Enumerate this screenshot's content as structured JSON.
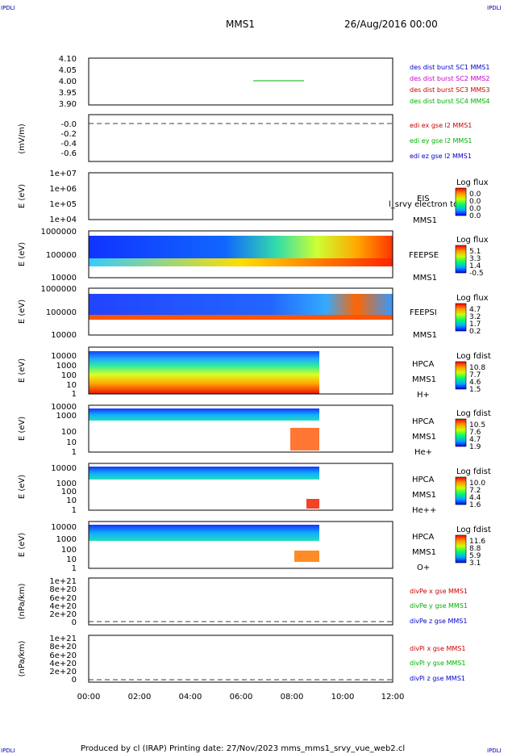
{
  "corner_marks": {
    "top_left": "IPDLI",
    "top_right": "IPDLI",
    "bottom_left": "IPDLI",
    "bottom_right": "IPDLI"
  },
  "header": {
    "mission": "MMS1",
    "date": "26/Aug/2016 00:00"
  },
  "footer": {
    "text": "Produced by cl (IRAP)   Printing date: 27/Nov/2023   mms_mms1_srvy_vue_web2.cl"
  },
  "x_axis": {
    "ticks": [
      "00:00",
      "02:00",
      "04:00",
      "06:00",
      "08:00",
      "10:00",
      "12:00"
    ]
  },
  "chart_data": [
    {
      "type": "line",
      "panel": "des dist burst",
      "ylabel": "",
      "yticks": [
        "4.10",
        "4.05",
        "4.00",
        "3.95",
        "3.90"
      ],
      "ylim": [
        3.9,
        4.1
      ],
      "xlim": [
        "00:00",
        "12:00"
      ],
      "series": [
        {
          "name": "des dist burst SC1 MMS1",
          "color": "#0000cc",
          "points": []
        },
        {
          "name": "des dist burst SC2 MMS2",
          "color": "#cc00cc",
          "points": []
        },
        {
          "name": "des dist burst SC3 MMS3",
          "color": "#cc0000",
          "points": []
        },
        {
          "name": "des dist burst SC4 MMS4",
          "color": "#00b000",
          "points": [
            [
              "06:35",
              4.0
            ],
            [
              "08:35",
              4.0
            ]
          ]
        }
      ]
    },
    {
      "type": "line",
      "panel": "edi efield",
      "ylabel": "(mV/m)",
      "yticks": [
        "-0.0",
        "-0.2",
        "-0.4",
        "-0.6"
      ],
      "ylim": [
        -0.7,
        0.05
      ],
      "series": [
        {
          "name": "edi ex gse l2 MMS1",
          "color": "#cc0000"
        },
        {
          "name": "edi ey gse l2 MMS1",
          "color": "#00b000"
        },
        {
          "name": "edi ez gse l2 MMS1",
          "color": "#0000cc"
        }
      ]
    },
    {
      "type": "heatmap",
      "panel": "EIS",
      "ylabel": "E (eV)",
      "yticks": [
        "1e+07",
        "1e+06",
        "1e+05",
        "1e+04"
      ],
      "scale": "log",
      "labels": [
        "EIS",
        "MMS1"
      ],
      "overlay_text": "l_srvy electron to",
      "colorbar": {
        "title": "Log flux",
        "ticks": [
          "0.0",
          "0.0",
          "0.0",
          "0.0"
        ]
      }
    },
    {
      "type": "heatmap",
      "panel": "FEEPSE",
      "ylabel": "E (eV)",
      "yticks": [
        "1000000",
        "100000",
        "10000"
      ],
      "scale": "log",
      "labels": [
        "FEEPSE",
        "MMS1"
      ],
      "colorbar": {
        "title": "Log flux",
        "ticks": [
          "5.1",
          "3.3",
          "1.4",
          "-0.5"
        ]
      },
      "extent_x": [
        "00:00",
        "12:00"
      ],
      "trend": "blue (low) flux from 00:00 to ~06:00, rising to green/yellow/red toward 12:00"
    },
    {
      "type": "heatmap",
      "panel": "FEEPSI",
      "ylabel": "E (eV)",
      "yticks": [
        "1000000",
        "100000",
        "10000"
      ],
      "scale": "log",
      "labels": [
        "FEEPSI",
        "MMS1"
      ],
      "colorbar": {
        "title": "Log flux",
        "ticks": [
          "4.7",
          "3.2",
          "1.7",
          "0.2"
        ]
      },
      "extent_x": [
        "00:00",
        "12:00"
      ]
    },
    {
      "type": "heatmap",
      "panel": "HPCA H+",
      "ylabel": "E (eV)",
      "yticks": [
        "10000",
        "1000",
        "100",
        "10",
        "1"
      ],
      "scale": "log",
      "labels": [
        "HPCA",
        "MMS1",
        "H+"
      ],
      "colorbar": {
        "title": "Log fdist",
        "ticks": [
          "10.8",
          "7.7",
          "4.6",
          "1.5"
        ]
      },
      "extent_x": [
        "00:00",
        "09:05"
      ]
    },
    {
      "type": "heatmap",
      "panel": "HPCA He+",
      "ylabel": "E (eV)",
      "yticks": [
        "10000",
        "1000",
        "100",
        "10",
        "1"
      ],
      "scale": "log",
      "labels": [
        "HPCA",
        "MMS1",
        "He+"
      ],
      "colorbar": {
        "title": "Log fdist",
        "ticks": [
          "10.5",
          "7.6",
          "4.7",
          "1.9"
        ]
      },
      "extent_x": [
        "00:00",
        "09:05"
      ]
    },
    {
      "type": "heatmap",
      "panel": "HPCA He++",
      "ylabel": "E (eV)",
      "yticks": [
        "10000",
        "1000",
        "100",
        "10",
        "1"
      ],
      "scale": "log",
      "labels": [
        "HPCA",
        "MMS1",
        "He++"
      ],
      "colorbar": {
        "title": "Log fdist",
        "ticks": [
          "10.0",
          "7.2",
          "4.4",
          "1.6"
        ]
      },
      "extent_x": [
        "00:00",
        "09:05"
      ]
    },
    {
      "type": "heatmap",
      "panel": "HPCA O+",
      "ylabel": "E (eV)",
      "yticks": [
        "10000",
        "1000",
        "100",
        "10",
        "1"
      ],
      "scale": "log",
      "labels": [
        "HPCA",
        "MMS1",
        "O+"
      ],
      "colorbar": {
        "title": "Log fdist",
        "ticks": [
          "11.6",
          "8.8",
          "5.9",
          "3.1"
        ]
      },
      "extent_x": [
        "00:00",
        "09:05"
      ]
    },
    {
      "type": "line",
      "panel": "divPe",
      "ylabel": "(nPa/km)",
      "yticks": [
        "1e+21",
        "8e+20",
        "6e+20",
        "4e+20",
        "2e+20",
        "0"
      ],
      "series": [
        {
          "name": "divPe x gse MMS1",
          "color": "#cc0000"
        },
        {
          "name": "divPe y gse MMS1",
          "color": "#00b000"
        },
        {
          "name": "divPe z gse MMS1",
          "color": "#0000cc"
        }
      ]
    },
    {
      "type": "line",
      "panel": "divPi",
      "ylabel": "(nPa/km)",
      "yticks": [
        "1e+21",
        "8e+20",
        "6e+20",
        "4e+20",
        "2e+20",
        "0"
      ],
      "series": [
        {
          "name": "divPi x gse MMS1",
          "color": "#cc0000"
        },
        {
          "name": "divPi y gse MMS1",
          "color": "#00b000"
        },
        {
          "name": "divPi z gse MMS1",
          "color": "#0000cc"
        }
      ]
    }
  ]
}
